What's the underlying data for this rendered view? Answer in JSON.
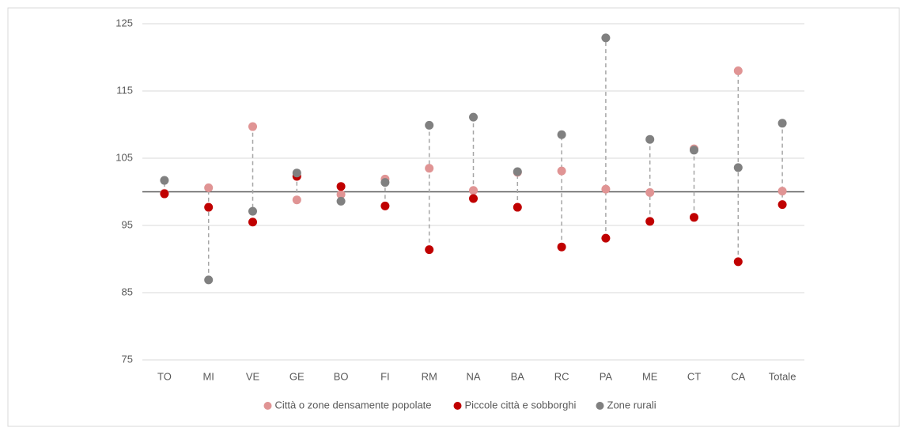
{
  "chart_data": {
    "type": "dot",
    "categories": [
      "TO",
      "MI",
      "VE",
      "GE",
      "BO",
      "FI",
      "RM",
      "NA",
      "BA",
      "RC",
      "PA",
      "ME",
      "CT",
      "CA",
      "Totale"
    ],
    "series": [
      {
        "name": "Città o zone densamente popolate",
        "color": "#e09494",
        "values": [
          99.8,
          100.6,
          109.7,
          98.8,
          99.6,
          101.9,
          103.5,
          100.2,
          102.9,
          103.1,
          100.4,
          99.9,
          106.4,
          118.0,
          100.1
        ]
      },
      {
        "name": "Piccole città e sobborghi",
        "color": "#c00000",
        "values": [
          99.7,
          97.7,
          95.5,
          102.3,
          100.8,
          97.9,
          91.4,
          99.0,
          97.7,
          91.8,
          93.1,
          95.6,
          96.2,
          89.6,
          98.1
        ]
      },
      {
        "name": "Zone rurali",
        "color": "#808080",
        "values": [
          101.7,
          86.9,
          97.1,
          102.8,
          98.6,
          101.4,
          109.9,
          111.1,
          103.0,
          108.5,
          122.9,
          107.8,
          106.2,
          103.6,
          110.2
        ]
      }
    ],
    "ylim": [
      75,
      125
    ],
    "yticks": [
      75,
      85,
      95,
      105,
      115,
      125
    ],
    "grid": true,
    "reference_line": 100,
    "legend": "bottom"
  }
}
